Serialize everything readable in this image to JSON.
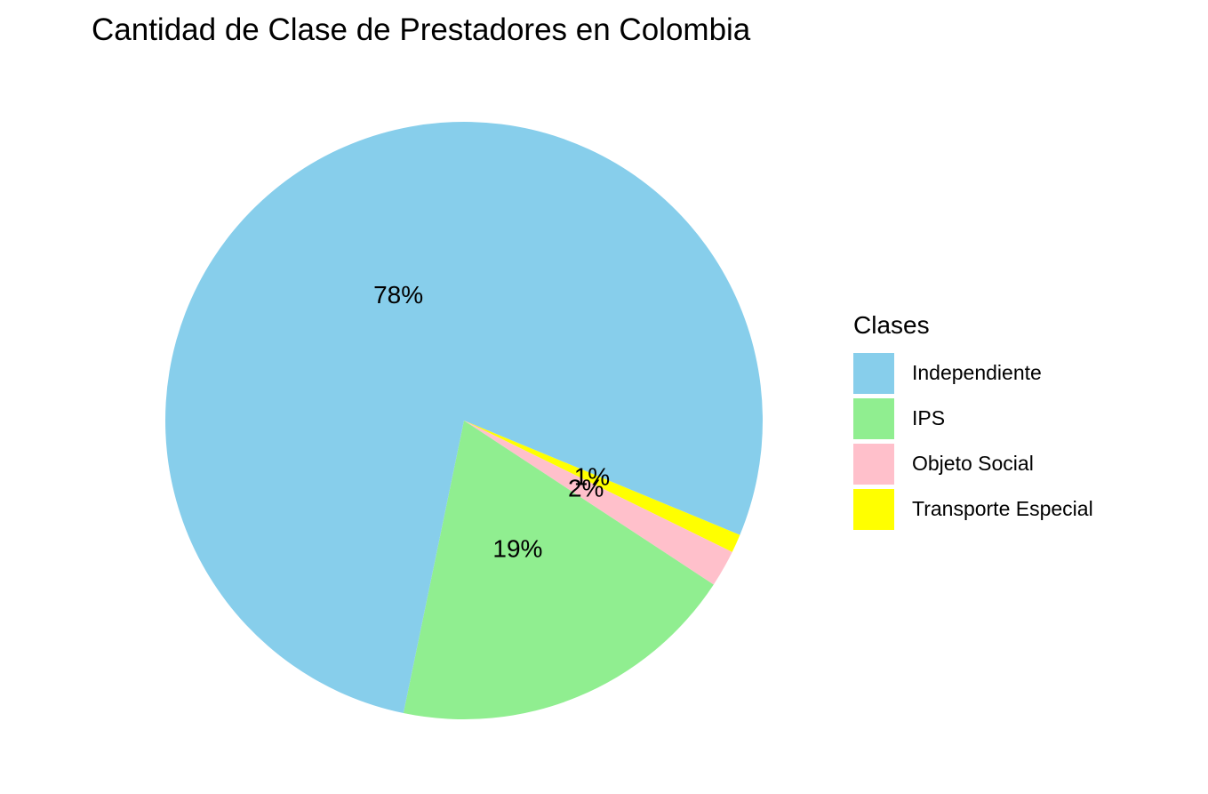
{
  "chart_data": {
    "type": "pie",
    "title": "Cantidad de Clase de Prestadores en Colombia",
    "legend_title": "Clases",
    "legend_position": "right",
    "slices": [
      {
        "label": "Independiente",
        "value": 78,
        "display": "78%",
        "color": "#87CEEB"
      },
      {
        "label": "IPS",
        "value": 19,
        "display": "19%",
        "color": "#90EE90"
      },
      {
        "label": "Objeto Social",
        "value": 2,
        "display": "2%",
        "color": "#FFC0CB"
      },
      {
        "label": "Transporte Especial",
        "value": 1,
        "display": "1%",
        "color": "#FFFF00"
      }
    ]
  }
}
